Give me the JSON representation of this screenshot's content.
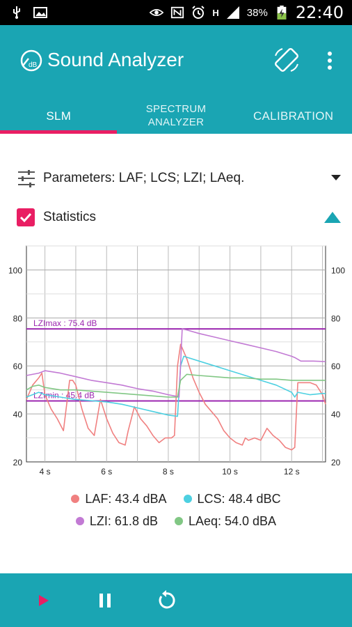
{
  "status_bar": {
    "battery": "38%",
    "time": "22:40",
    "network_label": "H"
  },
  "app_bar": {
    "title": "Sound Analyzer",
    "logo_label": "dB"
  },
  "tabs": [
    {
      "label": "SLM",
      "active": true
    },
    {
      "label": "SPECTRUM ANALYZER",
      "active": false
    },
    {
      "label": "CALIBRATION",
      "active": false
    }
  ],
  "parameters": {
    "label": "Parameters: LAF; LCS; LZI; LAeq."
  },
  "statistics": {
    "label": "Statistics",
    "checked": true
  },
  "chart_data": {
    "type": "line",
    "xlim": [
      3.4,
      13.1
    ],
    "ylim": [
      20,
      110
    ],
    "x_ticks": [
      4,
      6,
      8,
      10,
      12
    ],
    "x_tick_labels": [
      "4 s",
      "6 s",
      "8 s",
      "10 s",
      "12 s"
    ],
    "y_ticks": [
      20,
      40,
      60,
      80,
      100
    ],
    "y_tick_labels": [
      "20",
      "40",
      "60",
      "80",
      "100"
    ],
    "grid": true,
    "annotations": [
      {
        "text": "LZImax : 75.4 dB",
        "y": 75.4,
        "color": "#9c27b0"
      },
      {
        "text": "LZImin : 45.4 dB",
        "y": 45.4,
        "color": "#9c27b0"
      }
    ],
    "series": [
      {
        "name": "LAF",
        "color": "#f08080",
        "x": [
          3.4,
          3.6,
          3.8,
          3.9,
          4.0,
          4.2,
          4.4,
          4.6,
          4.8,
          4.9,
          5.0,
          5.2,
          5.4,
          5.6,
          5.8,
          6.0,
          6.2,
          6.4,
          6.6,
          6.7,
          6.9,
          7.1,
          7.3,
          7.5,
          7.7,
          7.9,
          8.1,
          8.2,
          8.3,
          8.4,
          8.6,
          8.8,
          9.0,
          9.2,
          9.4,
          9.6,
          9.8,
          10.0,
          10.2,
          10.4,
          10.5,
          10.6,
          10.8,
          11.0,
          11.2,
          11.4,
          11.6,
          11.8,
          12.0,
          12.1,
          12.2,
          12.4,
          12.6,
          12.8,
          13.0,
          13.1
        ],
        "y": [
          46,
          52,
          55,
          57,
          48,
          42,
          38,
          33,
          54,
          54,
          52,
          42,
          34,
          31,
          46,
          38,
          32,
          28,
          27,
          33,
          43,
          38,
          35,
          31,
          28,
          30,
          30,
          31,
          60,
          69,
          63,
          55,
          49,
          44,
          41,
          38,
          33,
          30,
          28,
          27,
          30,
          29,
          30,
          29,
          34,
          31,
          29,
          26,
          25,
          26,
          53,
          53,
          53,
          52,
          48,
          44
        ]
      },
      {
        "name": "LCS",
        "color": "#4dd0e1",
        "x": [
          3.4,
          3.8,
          4.0,
          4.5,
          5.0,
          5.5,
          6.0,
          6.5,
          7.0,
          7.5,
          8.0,
          8.3,
          8.4,
          8.5,
          9.0,
          9.5,
          10.0,
          10.5,
          11.0,
          11.5,
          12.0,
          12.1,
          12.2,
          12.6,
          13.0,
          13.1
        ],
        "y": [
          47,
          49,
          48,
          47,
          46,
          45.5,
          45,
          44,
          42.5,
          41,
          39.5,
          39,
          60,
          64,
          62,
          60,
          58,
          56,
          54,
          52,
          49,
          47,
          49,
          48,
          48.5,
          48.5
        ]
      },
      {
        "name": "LZI",
        "color": "#c27ad4",
        "x": [
          3.4,
          3.8,
          4.0,
          4.5,
          5.0,
          5.5,
          6.0,
          6.5,
          7.0,
          7.5,
          8.0,
          8.2,
          8.35,
          8.45,
          8.6,
          9.0,
          9.5,
          10.0,
          10.5,
          11.0,
          11.5,
          12.0,
          12.1,
          12.3,
          12.7,
          13.1
        ],
        "y": [
          56,
          57,
          58,
          57,
          55.5,
          54,
          53,
          52,
          50.5,
          49.5,
          48,
          47.5,
          47,
          75.4,
          75,
          73.5,
          72,
          70.5,
          69,
          67.5,
          66,
          64,
          63.5,
          62,
          62,
          61.8
        ]
      },
      {
        "name": "LAeq",
        "color": "#81c784",
        "x": [
          3.4,
          3.6,
          3.8,
          4.0,
          4.5,
          5.0,
          5.5,
          6.0,
          6.5,
          7.0,
          7.5,
          8.0,
          8.3,
          8.4,
          8.6,
          9.0,
          9.5,
          10.0,
          10.5,
          11.0,
          11.5,
          12.0,
          12.5,
          13.1
        ],
        "y": [
          50,
          51.5,
          52,
          51,
          50,
          50,
          49.5,
          49,
          48.5,
          48,
          47.5,
          47,
          47,
          54,
          56.5,
          56,
          55.5,
          55,
          55,
          54.5,
          54.5,
          54,
          54,
          54
        ]
      }
    ]
  },
  "legend": [
    {
      "label": "LAF: 43.4 dBA",
      "color": "#f08080"
    },
    {
      "label": "LCS: 48.4 dBC",
      "color": "#4dd0e1"
    },
    {
      "label": "LZI: 61.8 dB",
      "color": "#c27ad4"
    },
    {
      "label": "LAeq: 54.0 dBA",
      "color": "#81c784"
    }
  ],
  "controls": {
    "play_color": "#e91e63"
  }
}
